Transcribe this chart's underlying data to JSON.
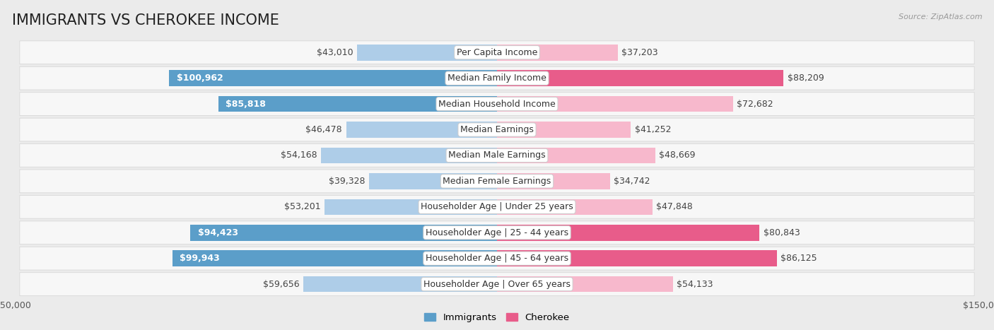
{
  "title": "IMMIGRANTS VS CHEROKEE INCOME",
  "source": "Source: ZipAtlas.com",
  "categories": [
    "Per Capita Income",
    "Median Family Income",
    "Median Household Income",
    "Median Earnings",
    "Median Male Earnings",
    "Median Female Earnings",
    "Householder Age | Under 25 years",
    "Householder Age | 25 - 44 years",
    "Householder Age | 45 - 64 years",
    "Householder Age | Over 65 years"
  ],
  "immigrants_values": [
    43010,
    100962,
    85818,
    46478,
    54168,
    39328,
    53201,
    94423,
    99943,
    59656
  ],
  "cherokee_values": [
    37203,
    88209,
    72682,
    41252,
    48669,
    34742,
    47848,
    80843,
    86125,
    54133
  ],
  "immigrants_labels": [
    "$43,010",
    "$100,962",
    "$85,818",
    "$46,478",
    "$54,168",
    "$39,328",
    "$53,201",
    "$94,423",
    "$99,943",
    "$59,656"
  ],
  "cherokee_labels": [
    "$37,203",
    "$88,209",
    "$72,682",
    "$41,252",
    "$48,669",
    "$34,742",
    "$47,848",
    "$80,843",
    "$86,125",
    "$54,133"
  ],
  "immigrants_color_light": "#aecde8",
  "immigrants_color_dark": "#5b9ec9",
  "cherokee_color_light": "#f7b8cc",
  "cherokee_color_dark": "#e85c8a",
  "max_value": 150000,
  "background_color": "#ebebeb",
  "row_bg": "#f7f7f7",
  "row_border": "#d8d8d8",
  "legend_immigrants": "Immigrants",
  "legend_cherokee": "Cherokee",
  "title_fontsize": 15,
  "label_fontsize": 9,
  "axis_label_fontsize": 9,
  "dark_threshold": 75000
}
